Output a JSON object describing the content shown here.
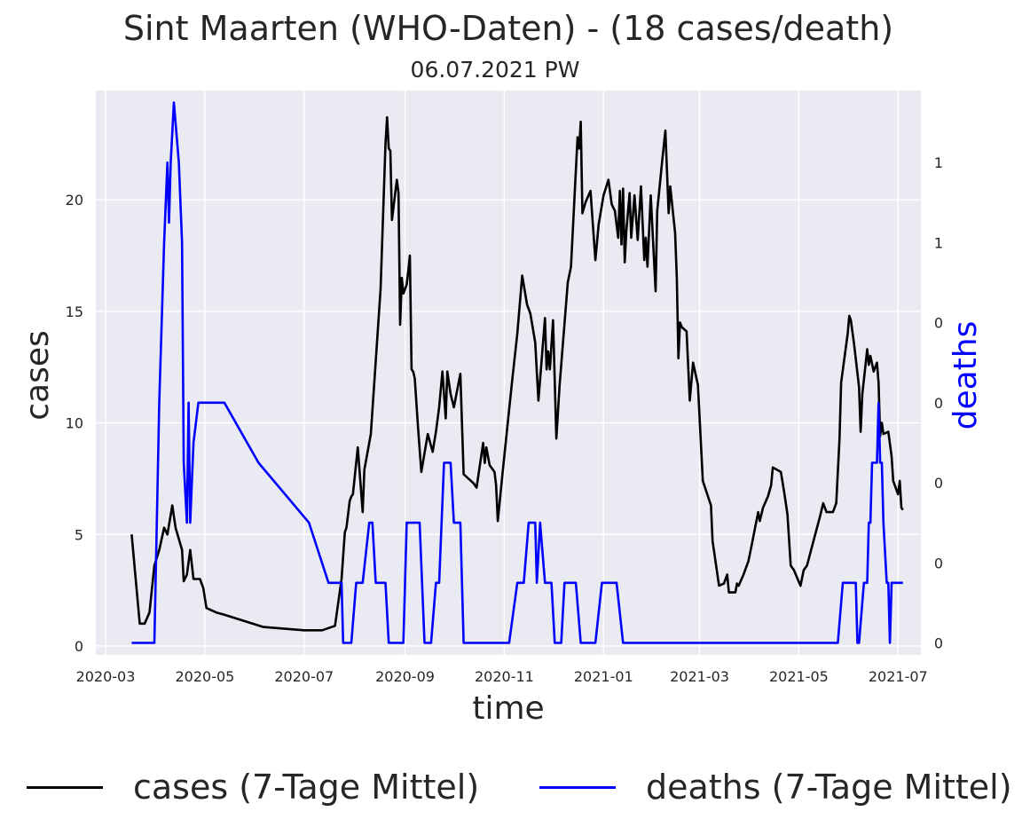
{
  "chart_data": {
    "type": "line",
    "title": "Sint Maarten (WHO-Daten) - (18 cases/death)",
    "subtitle": "06.07.2021 PW",
    "xlabel": "time",
    "ylabel": "cases",
    "y2label": "deaths",
    "x_ticks": [
      "2020-03",
      "2020-05",
      "2020-07",
      "2020-09",
      "2020-11",
      "2021-01",
      "2021-03",
      "2021-05",
      "2021-07"
    ],
    "y_ticks": [
      "0",
      "5",
      "10",
      "15",
      "20"
    ],
    "y2_ticks": [
      "0",
      "0",
      "0",
      "0",
      "0",
      "1",
      "1"
    ],
    "ylim": [
      -0.4,
      24.9
    ],
    "y2lim": [
      -0.03,
      1.38
    ],
    "grid": true,
    "legend_position": "bottom",
    "colors": {
      "cases": "#000000",
      "deaths": "#0000ff",
      "background": "#eaeaf2",
      "grid": "#ffffff"
    },
    "series": [
      {
        "name": "cases (7-Tage Mittel)",
        "axis": "left",
        "color": "#000000",
        "points": [
          [
            "2020-03-17",
            5.0
          ],
          [
            "2020-03-22",
            1.0
          ],
          [
            "2020-03-25",
            1.0
          ],
          [
            "2020-03-28",
            1.5
          ],
          [
            "2020-03-31",
            3.6
          ],
          [
            "2020-04-03",
            4.3
          ],
          [
            "2020-04-06",
            5.3
          ],
          [
            "2020-04-08",
            5.0
          ],
          [
            "2020-04-11",
            6.3
          ],
          [
            "2020-04-13",
            5.3
          ],
          [
            "2020-04-17",
            4.3
          ],
          [
            "2020-04-18",
            2.9
          ],
          [
            "2020-04-20",
            3.2
          ],
          [
            "2020-04-22",
            4.3
          ],
          [
            "2020-04-24",
            3.0
          ],
          [
            "2020-04-28",
            3.0
          ],
          [
            "2020-04-30",
            2.6
          ],
          [
            "2020-05-02",
            1.7
          ],
          [
            "2020-05-08",
            1.5
          ],
          [
            "2020-05-13",
            1.4
          ],
          [
            "2020-06-06",
            0.85
          ],
          [
            "2020-07-01",
            0.7
          ],
          [
            "2020-07-12",
            0.7
          ],
          [
            "2020-07-20",
            0.9
          ],
          [
            "2020-07-24",
            3.0
          ],
          [
            "2020-07-26",
            5.1
          ],
          [
            "2020-07-27",
            5.3
          ],
          [
            "2020-07-29",
            6.5
          ],
          [
            "2020-07-30",
            6.7
          ],
          [
            "2020-07-31",
            6.8
          ],
          [
            "2020-08-03",
            8.9
          ],
          [
            "2020-08-06",
            6.0
          ],
          [
            "2020-08-07",
            7.9
          ],
          [
            "2020-08-11",
            9.5
          ],
          [
            "2020-08-17",
            16.0
          ],
          [
            "2020-08-20",
            22.5
          ],
          [
            "2020-08-21",
            23.7
          ],
          [
            "2020-08-22",
            22.3
          ],
          [
            "2020-08-23",
            22.2
          ],
          [
            "2020-08-24",
            19.1
          ],
          [
            "2020-08-27",
            20.9
          ],
          [
            "2020-08-28",
            20.3
          ],
          [
            "2020-08-29",
            14.4
          ],
          [
            "2020-08-30",
            16.5
          ],
          [
            "2020-08-31",
            15.8
          ],
          [
            "2020-09-02",
            16.2
          ],
          [
            "2020-09-03",
            16.8
          ],
          [
            "2020-09-04",
            17.5
          ],
          [
            "2020-09-05",
            12.4
          ],
          [
            "2020-09-06",
            12.3
          ],
          [
            "2020-09-07",
            12.0
          ],
          [
            "2020-09-09",
            9.8
          ],
          [
            "2020-09-11",
            7.8
          ],
          [
            "2020-09-15",
            9.5
          ],
          [
            "2020-09-18",
            8.7
          ],
          [
            "2020-09-20",
            9.6
          ],
          [
            "2020-09-22",
            10.7
          ],
          [
            "2020-09-24",
            12.3
          ],
          [
            "2020-09-26",
            10.2
          ],
          [
            "2020-09-27",
            12.3
          ],
          [
            "2020-09-29",
            11.3
          ],
          [
            "2020-10-01",
            10.7
          ],
          [
            "2020-10-05",
            12.2
          ],
          [
            "2020-10-07",
            7.7
          ],
          [
            "2020-10-10",
            7.5
          ],
          [
            "2020-10-13",
            7.3
          ],
          [
            "2020-10-15",
            7.1
          ],
          [
            "2020-10-19",
            9.1
          ],
          [
            "2020-10-20",
            8.2
          ],
          [
            "2020-10-21",
            8.9
          ],
          [
            "2020-10-23",
            8.1
          ],
          [
            "2020-10-26",
            7.8
          ],
          [
            "2020-10-27",
            7.2
          ],
          [
            "2020-10-28",
            5.6
          ],
          [
            "2020-10-31",
            7.8
          ],
          [
            "2020-11-04",
            10.6
          ],
          [
            "2020-11-06",
            12.0
          ],
          [
            "2020-11-09",
            14.0
          ],
          [
            "2020-11-12",
            16.6
          ],
          [
            "2020-11-15",
            15.3
          ],
          [
            "2020-11-17",
            14.9
          ],
          [
            "2020-11-20",
            13.6
          ],
          [
            "2020-11-22",
            11.0
          ],
          [
            "2020-11-26",
            14.7
          ],
          [
            "2020-11-27",
            12.4
          ],
          [
            "2020-11-28",
            13.2
          ],
          [
            "2020-11-29",
            12.4
          ],
          [
            "2020-12-01",
            14.6
          ],
          [
            "2020-12-03",
            9.3
          ],
          [
            "2020-12-05",
            11.7
          ],
          [
            "2020-12-10",
            16.3
          ],
          [
            "2020-12-12",
            17.0
          ],
          [
            "2020-12-16",
            22.8
          ],
          [
            "2020-12-17",
            22.3
          ],
          [
            "2020-12-18",
            23.5
          ],
          [
            "2020-12-19",
            19.4
          ],
          [
            "2020-12-21",
            19.9
          ],
          [
            "2020-12-24",
            20.4
          ],
          [
            "2020-12-27",
            17.3
          ],
          [
            "2020-12-29",
            18.9
          ],
          [
            "2021-01-01",
            20.2
          ],
          [
            "2021-01-04",
            20.9
          ],
          [
            "2021-01-06",
            19.8
          ],
          [
            "2021-01-08",
            19.5
          ],
          [
            "2021-01-10",
            18.3
          ],
          [
            "2021-01-11",
            20.4
          ],
          [
            "2021-01-12",
            18.0
          ],
          [
            "2021-01-13",
            20.5
          ],
          [
            "2021-01-14",
            17.2
          ],
          [
            "2021-01-15",
            18.6
          ],
          [
            "2021-01-17",
            20.3
          ],
          [
            "2021-01-18",
            18.3
          ],
          [
            "2021-01-20",
            20.2
          ],
          [
            "2021-01-22",
            18.2
          ],
          [
            "2021-01-24",
            20.6
          ],
          [
            "2021-01-26",
            17.3
          ],
          [
            "2021-01-27",
            18.3
          ],
          [
            "2021-01-28",
            17.0
          ],
          [
            "2021-01-30",
            20.2
          ],
          [
            "2021-02-02",
            15.9
          ],
          [
            "2021-02-03",
            19.5
          ],
          [
            "2021-02-06",
            21.7
          ],
          [
            "2021-02-08",
            23.1
          ],
          [
            "2021-02-10",
            19.4
          ],
          [
            "2021-02-11",
            20.6
          ],
          [
            "2021-02-14",
            18.5
          ],
          [
            "2021-02-15",
            16.5
          ],
          [
            "2021-02-16",
            12.9
          ],
          [
            "2021-02-17",
            14.5
          ],
          [
            "2021-02-18",
            14.3
          ],
          [
            "2021-02-21",
            14.1
          ],
          [
            "2021-02-23",
            11.0
          ],
          [
            "2021-02-25",
            12.7
          ],
          [
            "2021-02-28",
            11.7
          ],
          [
            "2021-03-03",
            7.4
          ],
          [
            "2021-03-08",
            6.3
          ],
          [
            "2021-03-09",
            4.7
          ],
          [
            "2021-03-13",
            2.7
          ],
          [
            "2021-03-16",
            2.8
          ],
          [
            "2021-03-18",
            3.2
          ],
          [
            "2021-03-19",
            2.4
          ],
          [
            "2021-03-23",
            2.4
          ],
          [
            "2021-03-24",
            2.8
          ],
          [
            "2021-03-25",
            2.7
          ],
          [
            "2021-03-28",
            3.2
          ],
          [
            "2021-03-31",
            3.8
          ],
          [
            "2021-04-02",
            4.5
          ],
          [
            "2021-04-06",
            6.0
          ],
          [
            "2021-04-07",
            5.6
          ],
          [
            "2021-04-09",
            6.2
          ],
          [
            "2021-04-12",
            6.7
          ],
          [
            "2021-04-14",
            7.2
          ],
          [
            "2021-04-15",
            8.0
          ],
          [
            "2021-04-20",
            7.8
          ],
          [
            "2021-04-22",
            6.9
          ],
          [
            "2021-04-24",
            5.9
          ],
          [
            "2021-04-26",
            3.6
          ],
          [
            "2021-04-28",
            3.4
          ],
          [
            "2021-05-02",
            2.7
          ],
          [
            "2021-05-04",
            3.4
          ],
          [
            "2021-05-06",
            3.6
          ],
          [
            "2021-05-10",
            4.7
          ],
          [
            "2021-05-14",
            5.8
          ],
          [
            "2021-05-16",
            6.4
          ],
          [
            "2021-05-18",
            6.0
          ],
          [
            "2021-05-22",
            6.0
          ],
          [
            "2021-05-24",
            6.4
          ],
          [
            "2021-05-26",
            9.3
          ],
          [
            "2021-05-27",
            11.8
          ],
          [
            "2021-05-31",
            14.0
          ],
          [
            "2021-06-01",
            14.8
          ],
          [
            "2021-06-02",
            14.6
          ],
          [
            "2021-06-04",
            13.5
          ],
          [
            "2021-06-07",
            11.6
          ],
          [
            "2021-06-08",
            9.6
          ],
          [
            "2021-06-09",
            11.3
          ],
          [
            "2021-06-11",
            12.6
          ],
          [
            "2021-06-12",
            13.3
          ],
          [
            "2021-06-13",
            12.6
          ],
          [
            "2021-06-14",
            13.0
          ],
          [
            "2021-06-16",
            12.3
          ],
          [
            "2021-06-18",
            12.7
          ],
          [
            "2021-06-19",
            11.8
          ],
          [
            "2021-06-20",
            9.4
          ],
          [
            "2021-06-21",
            10.0
          ],
          [
            "2021-06-22",
            9.5
          ],
          [
            "2021-06-25",
            9.6
          ],
          [
            "2021-06-27",
            8.5
          ],
          [
            "2021-06-28",
            7.4
          ],
          [
            "2021-07-01",
            6.8
          ],
          [
            "2021-07-02",
            7.4
          ],
          [
            "2021-07-03",
            6.2
          ],
          [
            "2021-07-04",
            6.1
          ]
        ]
      },
      {
        "name": "deaths (7-Tage Mittel)",
        "axis": "right",
        "color": "#0000ff",
        "points": [
          [
            "2020-03-17",
            0.0
          ],
          [
            "2020-03-31",
            0.0
          ],
          [
            "2020-04-03",
            0.6
          ],
          [
            "2020-04-06",
            1.0
          ],
          [
            "2020-04-08",
            1.2
          ],
          [
            "2020-04-09",
            1.05
          ],
          [
            "2020-04-10",
            1.2
          ],
          [
            "2020-04-12",
            1.35
          ],
          [
            "2020-04-15",
            1.2
          ],
          [
            "2020-04-17",
            1.0
          ],
          [
            "2020-04-18",
            0.45
          ],
          [
            "2020-04-20",
            0.3
          ],
          [
            "2020-04-21",
            0.6
          ],
          [
            "2020-04-22",
            0.3
          ],
          [
            "2020-04-24",
            0.5
          ],
          [
            "2020-04-27",
            0.6
          ],
          [
            "2020-05-03",
            0.6
          ],
          [
            "2020-05-13",
            0.6
          ],
          [
            "2020-06-03",
            0.45
          ],
          [
            "2020-07-04",
            0.3
          ],
          [
            "2020-07-16",
            0.15
          ],
          [
            "2020-07-22",
            0.15
          ],
          [
            "2020-07-24",
            0.15
          ],
          [
            "2020-07-25",
            0.0
          ],
          [
            "2020-07-30",
            0.0
          ],
          [
            "2020-08-02",
            0.15
          ],
          [
            "2020-08-06",
            0.15
          ],
          [
            "2020-08-10",
            0.3
          ],
          [
            "2020-08-12",
            0.3
          ],
          [
            "2020-08-14",
            0.15
          ],
          [
            "2020-08-20",
            0.15
          ],
          [
            "2020-08-22",
            0.0
          ],
          [
            "2020-08-31",
            0.0
          ],
          [
            "2020-09-02",
            0.3
          ],
          [
            "2020-09-10",
            0.3
          ],
          [
            "2020-09-13",
            0.0
          ],
          [
            "2020-09-15",
            0.0
          ],
          [
            "2020-09-17",
            0.0
          ],
          [
            "2020-09-20",
            0.15
          ],
          [
            "2020-09-22",
            0.15
          ],
          [
            "2020-09-25",
            0.45
          ],
          [
            "2020-09-29",
            0.45
          ],
          [
            "2020-10-01",
            0.3
          ],
          [
            "2020-10-05",
            0.3
          ],
          [
            "2020-10-07",
            0.0
          ],
          [
            "2020-11-04",
            0.0
          ],
          [
            "2020-11-09",
            0.15
          ],
          [
            "2020-11-13",
            0.15
          ],
          [
            "2020-11-16",
            0.3
          ],
          [
            "2020-11-20",
            0.3
          ],
          [
            "2020-11-21",
            0.15
          ],
          [
            "2020-11-23",
            0.3
          ],
          [
            "2020-11-26",
            0.15
          ],
          [
            "2020-11-30",
            0.15
          ],
          [
            "2020-12-02",
            0.0
          ],
          [
            "2020-12-06",
            0.0
          ],
          [
            "2020-12-08",
            0.15
          ],
          [
            "2020-12-15",
            0.15
          ],
          [
            "2020-12-18",
            0.0
          ],
          [
            "2020-12-27",
            0.0
          ],
          [
            "2020-12-31",
            0.15
          ],
          [
            "2021-01-09",
            0.15
          ],
          [
            "2021-01-13",
            0.0
          ],
          [
            "2021-05-25",
            0.0
          ],
          [
            "2021-05-28",
            0.15
          ],
          [
            "2021-06-05",
            0.15
          ],
          [
            "2021-06-06",
            0.0
          ],
          [
            "2021-06-07",
            0.0
          ],
          [
            "2021-06-10",
            0.15
          ],
          [
            "2021-06-12",
            0.15
          ],
          [
            "2021-06-13",
            0.3
          ],
          [
            "2021-06-14",
            0.3
          ],
          [
            "2021-06-15",
            0.45
          ],
          [
            "2021-06-18",
            0.45
          ],
          [
            "2021-06-19",
            0.6
          ],
          [
            "2021-06-20",
            0.45
          ],
          [
            "2021-06-21",
            0.45
          ],
          [
            "2021-06-22",
            0.3
          ],
          [
            "2021-06-24",
            0.15
          ],
          [
            "2021-06-25",
            0.15
          ],
          [
            "2021-06-26",
            0.0
          ],
          [
            "2021-06-27",
            0.15
          ],
          [
            "2021-07-04",
            0.15
          ]
        ]
      }
    ]
  }
}
